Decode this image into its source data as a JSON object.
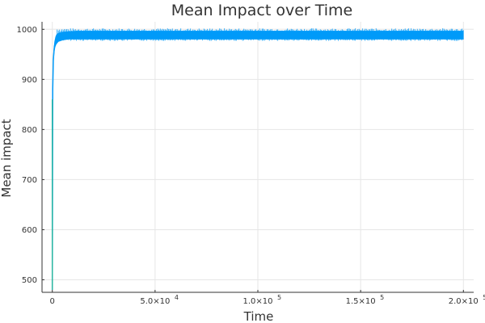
{
  "chart_data": {
    "type": "line",
    "title": "Mean Impact over Time",
    "xlabel": "Time",
    "ylabel": "Mean impact",
    "xlim": [
      -5000,
      205000
    ],
    "ylim": [
      475,
      1015
    ],
    "grid": true,
    "legend": false,
    "x_ticks": [
      {
        "value": 0,
        "label": "0",
        "exponent": ""
      },
      {
        "value": 50000,
        "label": "5.0×10",
        "exponent": "4"
      },
      {
        "value": 100000,
        "label": "1.0×10",
        "exponent": "5"
      },
      {
        "value": 150000,
        "label": "1.5×10",
        "exponent": "5"
      },
      {
        "value": 200000,
        "label": "2.0×10",
        "exponent": "5"
      }
    ],
    "y_ticks": [
      {
        "value": 500,
        "label": "500"
      },
      {
        "value": 600,
        "label": "600"
      },
      {
        "value": 700,
        "label": "700"
      },
      {
        "value": 800,
        "label": "800"
      },
      {
        "value": 900,
        "label": "900"
      },
      {
        "value": 1000,
        "label": "1000"
      }
    ],
    "series": [
      {
        "color": "#009af9",
        "x": [
          0,
          200,
          500,
          1000,
          1500,
          2000,
          3000,
          5000,
          8000,
          12000,
          20000,
          50000,
          100000,
          150000,
          200000
        ],
        "y": [
          480,
          880,
          940,
          965,
          975,
          980,
          984,
          987,
          988,
          989,
          989,
          989,
          989,
          989,
          989
        ],
        "band_low": [
          480,
          860,
          925,
          955,
          965,
          970,
          975,
          978,
          980,
          980,
          980,
          980,
          980,
          980,
          980
        ],
        "band_high": [
          500,
          900,
          955,
          975,
          985,
          990,
          993,
          995,
          996,
          997,
          997,
          997,
          997,
          997,
          997
        ]
      }
    ]
  }
}
